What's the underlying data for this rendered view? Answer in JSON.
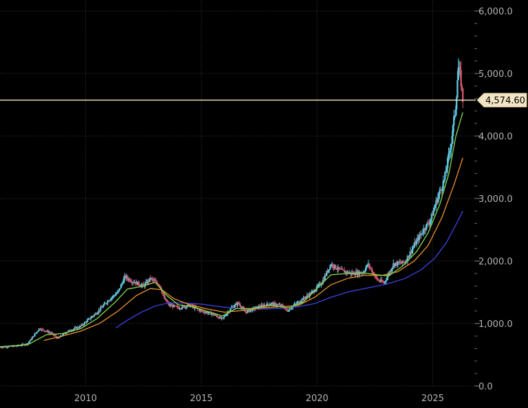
{
  "chart_data": {
    "type": "candlestick",
    "title": "",
    "xlabel": "",
    "ylabel": "",
    "x_range": [
      2006.3,
      2026.8
    ],
    "ylim": [
      0,
      6000
    ],
    "y_ticks": [
      0,
      1000,
      2000,
      3000,
      4000,
      5000,
      6000
    ],
    "y_tick_labels": [
      "0.0",
      "1,000.0",
      "2,000.0",
      "3,000.0",
      "4,000.0",
      "5,000.0",
      "6,000.0"
    ],
    "x_ticks": [
      2010,
      2015,
      2020,
      2025
    ],
    "x_tick_labels": [
      "2010",
      "2015",
      "2020",
      "2025"
    ],
    "grid": true,
    "current_price": 4574.6,
    "current_price_label": "4,574.60",
    "colors": {
      "background": "#000000",
      "up_candle": "#5ec4dc",
      "down_candle": "#d2556a",
      "ma_short": "#7fcf4a",
      "ma_mid": "#e08a2e",
      "ma_long": "#3b3fd6",
      "price_line": "#ead9b0",
      "grid": "#3a3a3a",
      "axis_text": "#b5b5b5"
    },
    "price_path": [
      [
        2006.3,
        620
      ],
      [
        2007.0,
        640
      ],
      [
        2007.5,
        680
      ],
      [
        2008.0,
        920
      ],
      [
        2008.5,
        850
      ],
      [
        2008.8,
        760
      ],
      [
        2009.2,
        870
      ],
      [
        2009.8,
        960
      ],
      [
        2010.5,
        1180
      ],
      [
        2011.0,
        1380
      ],
      [
        2011.4,
        1500
      ],
      [
        2011.7,
        1750
      ],
      [
        2012.0,
        1680
      ],
      [
        2012.5,
        1600
      ],
      [
        2012.8,
        1720
      ],
      [
        2013.2,
        1620
      ],
      [
        2013.4,
        1400
      ],
      [
        2013.6,
        1300
      ],
      [
        2014.0,
        1250
      ],
      [
        2014.5,
        1290
      ],
      [
        2015.0,
        1200
      ],
      [
        2015.5,
        1150
      ],
      [
        2015.9,
        1070
      ],
      [
        2016.3,
        1250
      ],
      [
        2016.6,
        1330
      ],
      [
        2016.9,
        1180
      ],
      [
        2017.5,
        1270
      ],
      [
        2018.0,
        1320
      ],
      [
        2018.5,
        1280
      ],
      [
        2018.7,
        1200
      ],
      [
        2019.0,
        1290
      ],
      [
        2019.5,
        1420
      ],
      [
        2019.8,
        1500
      ],
      [
        2020.2,
        1650
      ],
      [
        2020.6,
        1950
      ],
      [
        2021.0,
        1850
      ],
      [
        2021.5,
        1800
      ],
      [
        2022.0,
        1820
      ],
      [
        2022.2,
        1950
      ],
      [
        2022.6,
        1700
      ],
      [
        2022.9,
        1650
      ],
      [
        2023.3,
        1950
      ],
      [
        2023.8,
        1980
      ],
      [
        2024.2,
        2250
      ],
      [
        2024.6,
        2500
      ],
      [
        2024.9,
        2650
      ],
      [
        2025.2,
        3000
      ],
      [
        2025.5,
        3300
      ],
      [
        2025.8,
        3900
      ],
      [
        2026.0,
        4500
      ],
      [
        2026.1,
        5100
      ],
      [
        2026.2,
        4950
      ],
      [
        2026.3,
        4574.6
      ]
    ],
    "ma_short": [
      [
        2006.3,
        630
      ],
      [
        2007.5,
        660
      ],
      [
        2008.3,
        820
      ],
      [
        2009.0,
        840
      ],
      [
        2009.8,
        920
      ],
      [
        2010.5,
        1080
      ],
      [
        2011.3,
        1350
      ],
      [
        2011.8,
        1550
      ],
      [
        2012.5,
        1600
      ],
      [
        2013.0,
        1660
      ],
      [
        2013.5,
        1450
      ],
      [
        2014.0,
        1300
      ],
      [
        2014.6,
        1270
      ],
      [
        2015.3,
        1190
      ],
      [
        2015.9,
        1120
      ],
      [
        2016.5,
        1240
      ],
      [
        2017.2,
        1240
      ],
      [
        2018.0,
        1290
      ],
      [
        2018.8,
        1250
      ],
      [
        2019.4,
        1340
      ],
      [
        2020.0,
        1560
      ],
      [
        2020.6,
        1780
      ],
      [
        2021.3,
        1800
      ],
      [
        2022.0,
        1810
      ],
      [
        2022.6,
        1780
      ],
      [
        2023.1,
        1760
      ],
      [
        2023.7,
        1920
      ],
      [
        2024.3,
        2150
      ],
      [
        2024.8,
        2450
      ],
      [
        2025.3,
        2900
      ],
      [
        2025.7,
        3400
      ],
      [
        2026.0,
        4000
      ],
      [
        2026.3,
        4380
      ]
    ],
    "ma_mid": [
      [
        2008.2,
        730
      ],
      [
        2009.0,
        800
      ],
      [
        2009.8,
        880
      ],
      [
        2010.6,
        1000
      ],
      [
        2011.4,
        1200
      ],
      [
        2012.2,
        1450
      ],
      [
        2012.8,
        1560
      ],
      [
        2013.3,
        1540
      ],
      [
        2013.8,
        1400
      ],
      [
        2014.5,
        1300
      ],
      [
        2015.3,
        1230
      ],
      [
        2016.0,
        1180
      ],
      [
        2016.8,
        1210
      ],
      [
        2017.6,
        1250
      ],
      [
        2018.5,
        1270
      ],
      [
        2019.2,
        1290
      ],
      [
        2019.9,
        1420
      ],
      [
        2020.6,
        1620
      ],
      [
        2021.3,
        1720
      ],
      [
        2022.0,
        1770
      ],
      [
        2022.8,
        1770
      ],
      [
        2023.5,
        1830
      ],
      [
        2024.2,
        2000
      ],
      [
        2024.8,
        2250
      ],
      [
        2025.4,
        2700
      ],
      [
        2025.9,
        3200
      ],
      [
        2026.3,
        3650
      ]
    ],
    "ma_long": [
      [
        2011.3,
        930
      ],
      [
        2011.8,
        1050
      ],
      [
        2012.4,
        1180
      ],
      [
        2013.0,
        1280
      ],
      [
        2013.6,
        1330
      ],
      [
        2014.3,
        1330
      ],
      [
        2015.0,
        1310
      ],
      [
        2015.8,
        1270
      ],
      [
        2016.6,
        1240
      ],
      [
        2017.5,
        1230
      ],
      [
        2018.4,
        1240
      ],
      [
        2019.2,
        1270
      ],
      [
        2019.9,
        1320
      ],
      [
        2020.6,
        1420
      ],
      [
        2021.4,
        1510
      ],
      [
        2022.2,
        1570
      ],
      [
        2023.0,
        1630
      ],
      [
        2023.8,
        1720
      ],
      [
        2024.5,
        1860
      ],
      [
        2025.1,
        2050
      ],
      [
        2025.6,
        2300
      ],
      [
        2026.0,
        2580
      ],
      [
        2026.3,
        2800
      ]
    ]
  }
}
